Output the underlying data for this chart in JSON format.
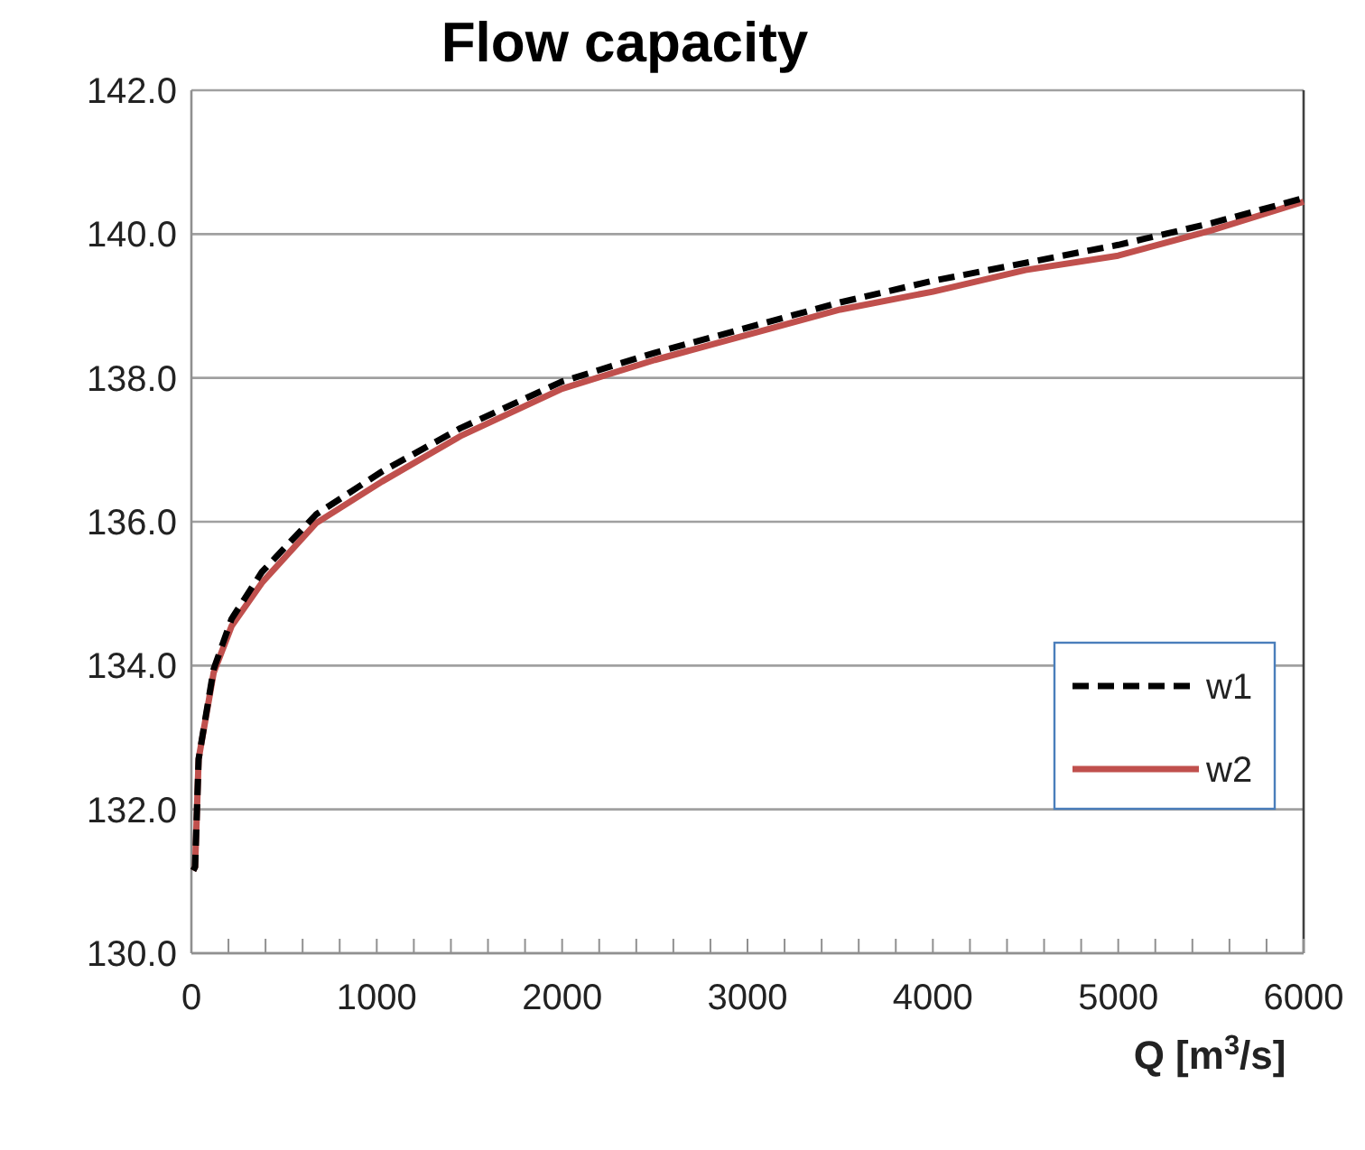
{
  "chart_data": {
    "type": "line",
    "title": "Flow capacity",
    "xlabel": "Q [m$^{3}$/s]",
    "x": [
      10,
      20,
      39,
      120,
      217,
      380,
      672,
      1029,
      1451,
      2000,
      2500,
      3000,
      3500,
      4000,
      4500,
      5000,
      5500,
      6000
    ],
    "series": [
      {
        "name": "w1",
        "color": "#000000",
        "line_style": "dashed",
        "values": [
          131.15,
          131.2,
          132.7,
          133.95,
          134.65,
          135.3,
          136.1,
          136.7,
          137.3,
          137.95,
          138.35,
          138.7,
          139.05,
          139.35,
          139.6,
          139.85,
          140.15,
          140.5
        ]
      },
      {
        "name": "w2",
        "color": "#c0504d",
        "line_style": "solid",
        "values": [
          131.15,
          131.2,
          132.7,
          133.9,
          134.55,
          135.15,
          135.98,
          136.56,
          137.19,
          137.85,
          138.25,
          138.6,
          138.95,
          139.2,
          139.5,
          139.7,
          140.05,
          140.45
        ]
      }
    ],
    "xlim": [
      0,
      6000
    ],
    "xticks": [
      0,
      {
        "value": 200,
        "label": null
      },
      {
        "value": 400,
        "label": null
      },
      {
        "value": 600,
        "label": null
      },
      {
        "value": 800,
        "label": null
      },
      1000,
      {
        "value": 1200,
        "label": null
      },
      {
        "value": 1400,
        "label": null
      },
      {
        "value": 1600,
        "label": null
      },
      {
        "value": 1800,
        "label": null
      },
      2000,
      {
        "value": 2200,
        "label": null
      },
      {
        "value": 2400,
        "label": null
      },
      {
        "value": 2600,
        "label": null
      },
      {
        "value": 2800,
        "label": null
      },
      3000,
      {
        "value": 3200,
        "label": null
      },
      {
        "value": 3400,
        "label": null
      },
      {
        "value": 3600,
        "label": null
      },
      {
        "value": 3800,
        "label": null
      },
      4000,
      {
        "value": 4200,
        "label": null
      },
      {
        "value": 4400,
        "label": null
      },
      {
        "value": 4600,
        "label": null
      },
      {
        "value": 4800,
        "label": null
      },
      5000,
      {
        "value": 5200,
        "label": null
      },
      {
        "value": 5400,
        "label": null
      },
      {
        "value": 5600,
        "label": null
      },
      {
        "value": 5800,
        "label": null
      },
      6000
    ],
    "ylim": [
      130,
      142
    ],
    "yticks": [
      {
        "value": 130,
        "label": "130.0"
      },
      {
        "value": 132,
        "label": "132.0"
      },
      {
        "value": 134,
        "label": "134.0"
      },
      {
        "value": 136,
        "label": "136.0"
      },
      {
        "value": 138,
        "label": "138.0"
      },
      {
        "value": 140,
        "label": "140.0"
      },
      {
        "value": 142,
        "label": "142.0"
      }
    ],
    "grid": "y",
    "legend": "right",
    "marker": "none"
  }
}
